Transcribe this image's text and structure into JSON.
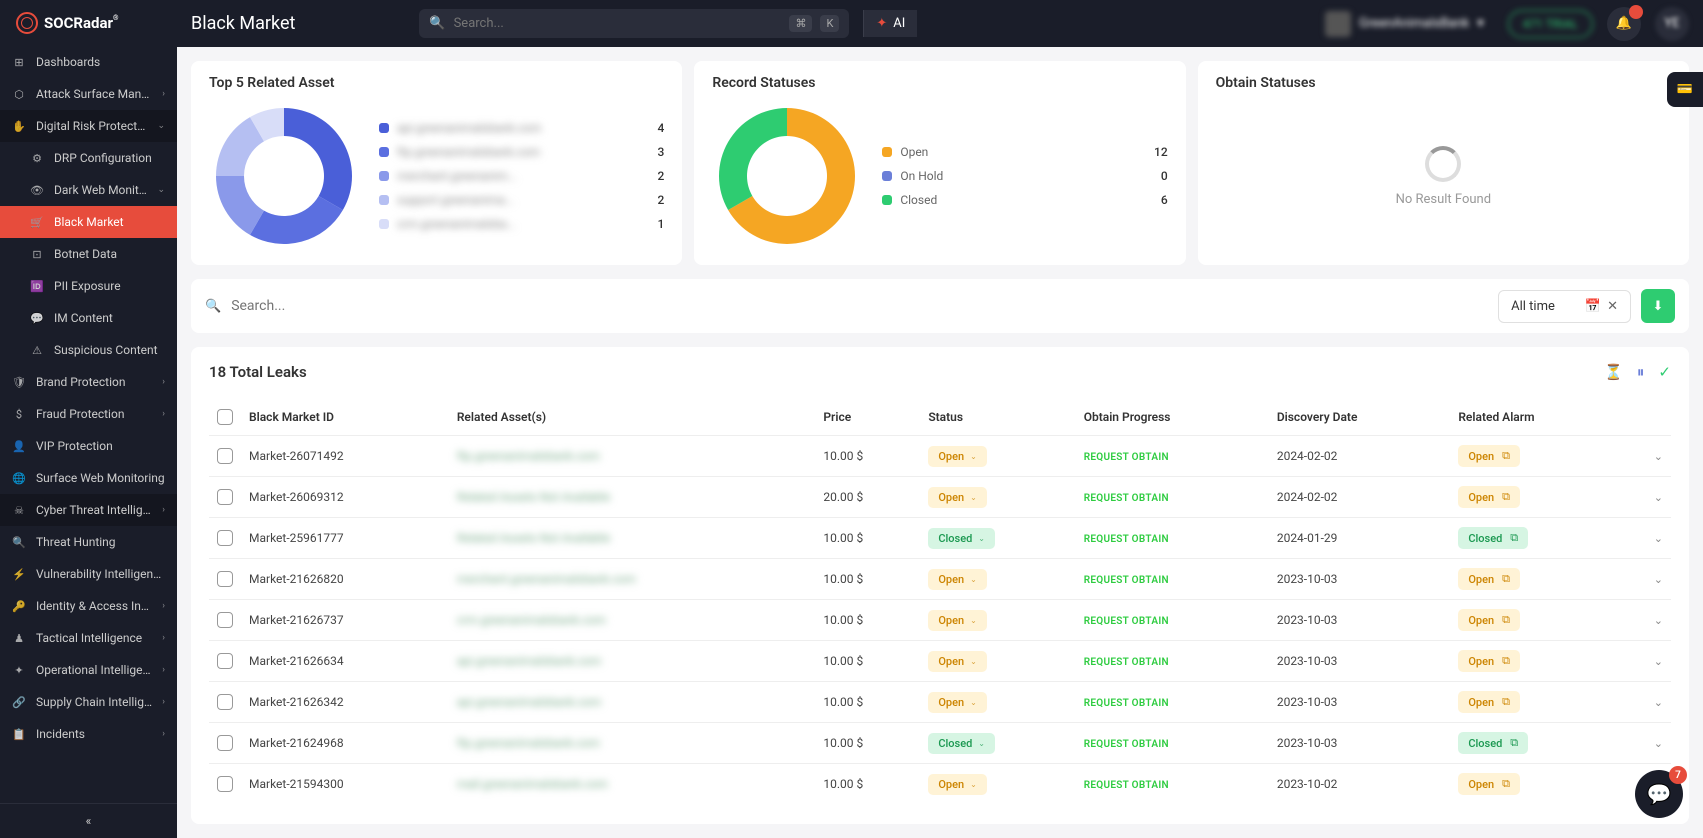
{
  "brand": {
    "name": "SOCRadar",
    "tm": "®"
  },
  "page_title": "Black Market",
  "search": {
    "placeholder": "Search...",
    "kbd1": "⌘",
    "kbd2": "K",
    "ai_label": "AI"
  },
  "org": {
    "name": "GreenAnimalsBank"
  },
  "trial": {
    "label": "471 TRIAL"
  },
  "notifications": {
    "count": ""
  },
  "user": {
    "initials": "YE"
  },
  "nav": [
    {
      "icon": "⊞",
      "label": "Dashboards",
      "type": "item"
    },
    {
      "icon": "⬡",
      "label": "Attack Surface Management",
      "type": "item",
      "chevron": "›"
    },
    {
      "icon": "✋",
      "label": "Digital Risk Protection",
      "type": "section",
      "chevron": "⌄"
    },
    {
      "icon": "⚙",
      "label": "DRP Configuration",
      "type": "sub"
    },
    {
      "icon": "👁",
      "label": "Dark Web Monitoring",
      "type": "sub",
      "chevron": "⌄"
    },
    {
      "icon": "🛒",
      "label": "Black Market",
      "type": "sub",
      "active": true
    },
    {
      "icon": "⊡",
      "label": "Botnet Data",
      "type": "sub"
    },
    {
      "icon": "🆔",
      "label": "PII Exposure",
      "type": "sub"
    },
    {
      "icon": "💬",
      "label": "IM Content",
      "type": "sub"
    },
    {
      "icon": "⚠",
      "label": "Suspicious Content",
      "type": "sub"
    },
    {
      "icon": "🛡",
      "label": "Brand Protection",
      "type": "item",
      "chevron": "›"
    },
    {
      "icon": "$",
      "label": "Fraud Protection",
      "type": "item",
      "chevron": "›"
    },
    {
      "icon": "👤",
      "label": "VIP Protection",
      "type": "item"
    },
    {
      "icon": "🌐",
      "label": "Surface Web Monitoring",
      "type": "item"
    },
    {
      "icon": "☠",
      "label": "Cyber Threat Intelligence",
      "type": "section",
      "chevron": "›"
    },
    {
      "icon": "🔍",
      "label": "Threat Hunting",
      "type": "item"
    },
    {
      "icon": "⚡",
      "label": "Vulnerability Intelligence",
      "type": "item"
    },
    {
      "icon": "🔑",
      "label": "Identity & Access Intelligence",
      "type": "item",
      "chevron": "›"
    },
    {
      "icon": "♟",
      "label": "Tactical Intelligence",
      "type": "item",
      "chevron": "›"
    },
    {
      "icon": "✦",
      "label": "Operational Intelligence",
      "type": "item",
      "chevron": "›"
    },
    {
      "icon": "🔗",
      "label": "Supply Chain Intelligence",
      "type": "item",
      "chevron": "›"
    },
    {
      "icon": "📋",
      "label": "Incidents",
      "type": "item",
      "chevron": "›"
    }
  ],
  "card1": {
    "title": "Top 5 Related Asset",
    "donut": {
      "size": 150,
      "slices": [
        {
          "color": "#4a5fd8",
          "value": 4
        },
        {
          "color": "#5b6fe0",
          "value": 3
        },
        {
          "color": "#8a99ea",
          "value": 2
        },
        {
          "color": "#b5bff2",
          "value": 2
        },
        {
          "color": "#d8ddf8",
          "value": 1
        }
      ]
    },
    "legend": [
      {
        "color": "#4a5fd8",
        "label": "api.greenanimalsbank.com",
        "value": "4"
      },
      {
        "color": "#5b6fe0",
        "label": "ftp.greenanimalsbank.com",
        "value": "3"
      },
      {
        "color": "#8a99ea",
        "label": "merchant.greenanim...",
        "value": "2"
      },
      {
        "color": "#b5bff2",
        "label": "support.greenanima...",
        "value": "2"
      },
      {
        "color": "#d8ddf8",
        "label": "crm.greenanimalsba...",
        "value": "1"
      }
    ]
  },
  "card2": {
    "title": "Record Statuses",
    "donut": {
      "size": 150,
      "slices": [
        {
          "color": "#f5a623",
          "value": 12
        },
        {
          "color": "#6b7fd8",
          "value": 0
        },
        {
          "color": "#2ecc71",
          "value": 6
        }
      ]
    },
    "legend": [
      {
        "color": "#f5a623",
        "label": "Open",
        "value": "12"
      },
      {
        "color": "#6b7fd8",
        "label": "On Hold",
        "value": "0"
      },
      {
        "color": "#2ecc71",
        "label": "Closed",
        "value": "6"
      }
    ]
  },
  "card3": {
    "title": "Obtain Statuses",
    "no_result": "No Result Found"
  },
  "filter": {
    "search_placeholder": "Search...",
    "time_label": "All time"
  },
  "table": {
    "title": "18 Total Leaks",
    "columns": [
      "",
      "Black Market ID",
      "Related Asset(s)",
      "Price",
      "Status",
      "Obtain Progress",
      "Discovery Date",
      "Related Alarm",
      ""
    ],
    "obtain_label": "REQUEST OBTAIN",
    "rows": [
      {
        "id": "Market-26071492",
        "asset": "ftp.greenanimalsbank.com",
        "price": "10.00 $",
        "status": "Open",
        "date": "2024-02-02",
        "alarm": "Open"
      },
      {
        "id": "Market-26069312",
        "asset": "Related Assets Not Available",
        "price": "20.00 $",
        "status": "Open",
        "date": "2024-02-02",
        "alarm": "Open"
      },
      {
        "id": "Market-25961777",
        "asset": "Related Assets Not Available",
        "price": "10.00 $",
        "status": "Closed",
        "date": "2024-01-29",
        "alarm": "Closed"
      },
      {
        "id": "Market-21626820",
        "asset": "merchant.greenanimalsbank.com",
        "price": "10.00 $",
        "status": "Open",
        "date": "2023-10-03",
        "alarm": "Open"
      },
      {
        "id": "Market-21626737",
        "asset": "crm.greenanimalsbank.com",
        "price": "10.00 $",
        "status": "Open",
        "date": "2023-10-03",
        "alarm": "Open"
      },
      {
        "id": "Market-21626634",
        "asset": "api.greenanimalsbank.com",
        "price": "10.00 $",
        "status": "Open",
        "date": "2023-10-03",
        "alarm": "Open"
      },
      {
        "id": "Market-21626342",
        "asset": "api.greenanimalsbank.com",
        "price": "10.00 $",
        "status": "Open",
        "date": "2023-10-03",
        "alarm": "Open"
      },
      {
        "id": "Market-21624968",
        "asset": "ftp.greenanimalsbank.com",
        "price": "10.00 $",
        "status": "Closed",
        "date": "2023-10-03",
        "alarm": "Closed"
      },
      {
        "id": "Market-21594300",
        "asset": "mail.greenanimalsbank.com",
        "price": "10.00 $",
        "status": "Open",
        "date": "2023-10-02",
        "alarm": "Open"
      }
    ]
  },
  "chat": {
    "badge": "7"
  }
}
